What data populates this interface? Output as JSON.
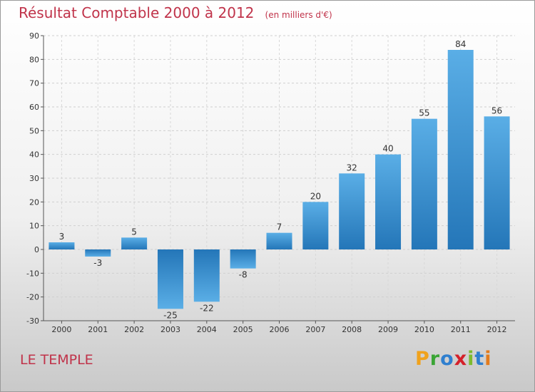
{
  "header": {
    "title": "Résultat Comptable 2000 à 2012",
    "unit": "(en milliers d'€)"
  },
  "footer": {
    "place": "LE TEMPLE",
    "logo": [
      "P",
      "r",
      "o",
      "x",
      "i",
      "t",
      "i"
    ]
  },
  "colors": {
    "bar_light": "#5aaee6",
    "bar_dark": "#2476b8",
    "title": "#c0334a"
  },
  "chart_data": {
    "type": "bar",
    "title": "Résultat Comptable 2000 à 2012",
    "ylabel": "en milliers d'€",
    "xlabel": "",
    "categories": [
      "2000",
      "2001",
      "2002",
      "2003",
      "2004",
      "2005",
      "2006",
      "2007",
      "2008",
      "2009",
      "2010",
      "2011",
      "2012"
    ],
    "values": [
      3,
      -3,
      5,
      -25,
      -22,
      -8,
      7,
      20,
      32,
      40,
      55,
      84,
      56
    ],
    "ylim": [
      -30,
      90
    ],
    "yticks": [
      -30,
      -20,
      -10,
      0,
      10,
      20,
      30,
      40,
      50,
      60,
      70,
      80,
      90
    ],
    "grid": true
  }
}
